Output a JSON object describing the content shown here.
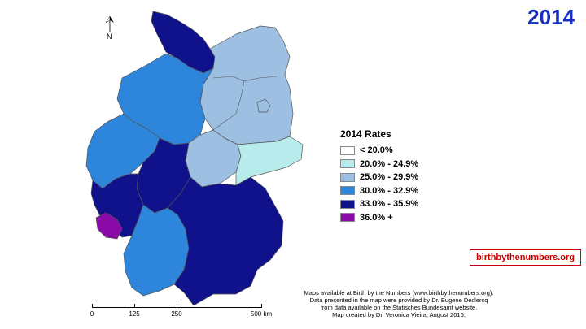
{
  "title": "2014",
  "north_label": "N",
  "legend": {
    "title": "2014 Rates",
    "items": [
      {
        "label": "< 20.0%",
        "color": "#ffffff"
      },
      {
        "label": "20.0%  - 24.9%",
        "color": "#b8ecec"
      },
      {
        "label": "25.0%  - 29.9%",
        "color": "#9dbfe2"
      },
      {
        "label": "30.0%  - 32.9%",
        "color": "#2d86dc"
      },
      {
        "label": "33.0%  - 35.9%",
        "color": "#0f128a"
      },
      {
        "label": "36.0% +",
        "color": "#8a0aa8"
      }
    ]
  },
  "regions": [
    {
      "name": "Schleswig-Holstein",
      "class": "33.0%  - 35.9%",
      "color": "#0f128a"
    },
    {
      "name": "Mecklenburg-Vorpommern / Brandenburg / Sachsen-Anhalt",
      "class": "25.0%  - 29.9%",
      "color": "#9dbfe2"
    },
    {
      "name": "Niedersachsen",
      "class": "30.0%  - 32.9%",
      "color": "#2d86dc"
    },
    {
      "name": "Nordrhein-Westfalen",
      "class": "30.0%  - 32.9%",
      "color": "#2d86dc"
    },
    {
      "name": "Hessen",
      "class": "33.0%  - 35.9%",
      "color": "#0f128a"
    },
    {
      "name": "Thüringen",
      "class": "25.0%  - 29.9%",
      "color": "#9dbfe2"
    },
    {
      "name": "Sachsen",
      "class": "20.0%  - 24.9%",
      "color": "#b8ecec"
    },
    {
      "name": "Rheinland-Pfalz",
      "class": "33.0%  - 35.9%",
      "color": "#0f128a"
    },
    {
      "name": "Saarland",
      "class": "36.0% +",
      "color": "#8a0aa8"
    },
    {
      "name": "Baden-Württemberg",
      "class": "30.0%  - 32.9%",
      "color": "#2d86dc"
    },
    {
      "name": "Bayern",
      "class": "33.0%  - 35.9%",
      "color": "#0f128a"
    }
  ],
  "source_badge": "birthbythenumbers.org",
  "credits": [
    "Maps available at Birth by the Numbers (www.birthbythenumbers.org).",
    "Data presented in the map were provided by Dr. Eugene Declercq",
    "from data available on the Statisches Bundesamt website.",
    "Map created by Dr. Veronica Vieira, August 2016."
  ],
  "scale": {
    "labels": [
      "0",
      "125",
      "250",
      "500 km"
    ]
  }
}
